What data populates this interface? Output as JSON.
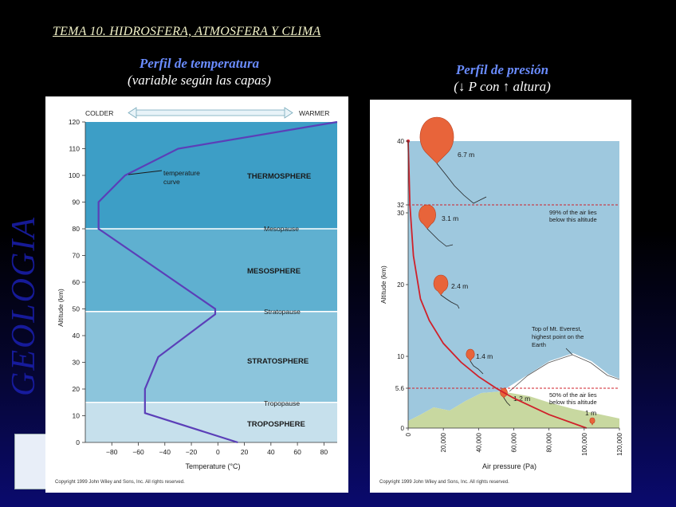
{
  "slide": {
    "title": "TEMA 10. HIDROSFERA, ATMOSFERA Y CLIMA",
    "side_text": "GEOLOGIA"
  },
  "left_panel": {
    "heading": "Perfil de temperatura",
    "subheading": "(variable según las capas)",
    "colder": "COLDER",
    "warmer": "WARMER",
    "y_axis_label": "Altitude (km)",
    "x_axis_label": "Temperature (°C)",
    "curve_label_line1": "temperature",
    "curve_label_line2": "curve",
    "copyright": "Copyright 1999 John Wiley and Sons, Inc. All rights reserved.",
    "layers": [
      "THERMOSPHERE",
      "MESOSPHERE",
      "STRATOSPHERE",
      "TROPOSPHERE"
    ],
    "pauses": [
      "Mesopause",
      "Stratopause",
      "Tropopause"
    ]
  },
  "right_panel": {
    "heading": "Perfil de presión",
    "subheading": "(↓ P con ↑ altura)",
    "y_axis_label": "Altitude (km)",
    "x_axis_label": "Air pressure (Pa)",
    "note_99_line1": "99% of the air lies",
    "note_99_line2": "below this altitude",
    "note_50_line1": "50% of the air lies",
    "note_50_line2": "below this altitude",
    "everest_line1": "Top of Mt. Everest,",
    "everest_line2": "highest point on the",
    "everest_line3": "Earth",
    "copyright": "Copyright 1999 John Wiley and Sons, Inc. All rights reserved.",
    "balloon_labels": [
      "6.7 m",
      "3.1 m",
      "2.4 m",
      "1.4 m",
      "1.2 m",
      "1 m"
    ]
  },
  "chart_data": [
    {
      "type": "line",
      "title": "Perfil de temperatura",
      "xlabel": "Temperature (°C)",
      "ylabel": "Altitude (km)",
      "xlim": [
        -100,
        90
      ],
      "ylim": [
        0,
        120
      ],
      "x_ticks": [
        -80,
        -60,
        -40,
        -20,
        0,
        20,
        40,
        60,
        80
      ],
      "y_ticks": [
        0,
        10,
        20,
        30,
        40,
        50,
        60,
        70,
        80,
        90,
        100,
        110,
        120
      ],
      "series": [
        {
          "x": [
            15,
            -55,
            -55,
            -45,
            -2,
            -2,
            -90,
            -90,
            -70,
            -30,
            90
          ],
          "y": [
            0,
            11,
            20,
            32,
            48,
            50,
            80,
            90,
            100,
            110,
            120
          ]
        }
      ],
      "boundaries_km": [
        15,
        49,
        80
      ],
      "colors": {
        "troposphere": "#c6e0ec",
        "stratosphere": "#8cc5dc",
        "mesosphere": "#5fb0d0",
        "thermosphere": "#3d9ec6",
        "curve": "#5b3fb8"
      }
    },
    {
      "type": "line",
      "title": "Perfil de presión",
      "xlabel": "Air pressure (Pa)",
      "ylabel": "Altitude (km)",
      "xlim": [
        0,
        120000
      ],
      "x_ticks": [
        "0",
        "20,000",
        "40,000",
        "60,000",
        "80,000",
        "100,000",
        "120,000"
      ],
      "y_ticks": [
        "0",
        "5.6",
        "10",
        "20",
        "30",
        "32",
        "40"
      ],
      "series": [
        {
          "x": [
            101325,
            80000,
            60000,
            50000,
            40000,
            30000,
            20000,
            12000,
            7000,
            3000,
            1000,
            0
          ],
          "y": [
            0,
            1.9,
            4.2,
            5.6,
            7.2,
            9.2,
            11.8,
            15,
            18,
            24,
            32,
            40
          ]
        }
      ],
      "markers_km": [
        5.6,
        32
      ],
      "colors": {
        "curve": "#d0202a",
        "sky": "#9ec8de",
        "ground": "#c8d8a0",
        "balloon": "#e86a3a"
      }
    }
  ]
}
